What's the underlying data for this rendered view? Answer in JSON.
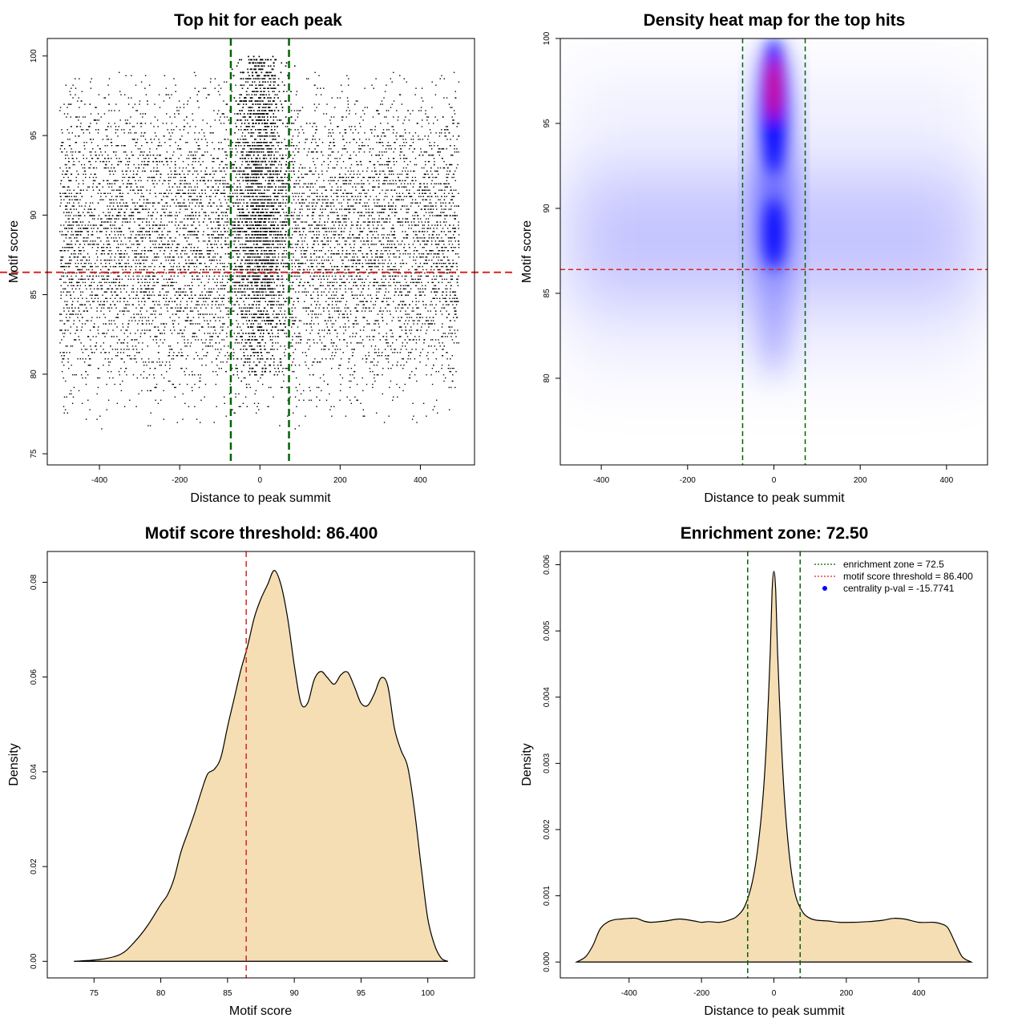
{
  "colors": {
    "enrichment_line": "#006400",
    "threshold_line": "#dd2222",
    "density_fill": "#f5deb3",
    "heat_low": "#ffffff",
    "heat_mid": "#0000ff",
    "heat_high": "#ff0000",
    "legend_pval": "#0000ff"
  },
  "chart_data": [
    {
      "type": "scatter",
      "title": "Top hit for each peak",
      "xlabel": "Distance to peak summit",
      "ylabel": "Motif score",
      "xlim": [
        -530,
        535
      ],
      "ylim": [
        74.3,
        101.1
      ],
      "xticks": [
        -400,
        -200,
        0,
        200,
        400
      ],
      "yticks": [
        75,
        80,
        85,
        90,
        95,
        100
      ],
      "x_range": [
        -500,
        495
      ],
      "enrichment_zone": [
        -72.5,
        72.5
      ],
      "motif_threshold": 86.4,
      "score_step": 0.2,
      "points_description": "Roughly uniform over distance within [-500, 495], dense concentration near 0 for scores 85–100"
    },
    {
      "type": "heatmap",
      "title": "Density heat map for the top hits",
      "xlabel": "Distance to peak summit",
      "ylabel": "Motif score",
      "xlim": [
        -495,
        495
      ],
      "ylim": [
        74.9,
        100.0
      ],
      "xticks": [
        -400,
        -200,
        0,
        200,
        400
      ],
      "yticks": [
        80,
        85,
        90,
        95,
        100
      ],
      "enrichment_zone": [
        -72.5,
        72.5
      ],
      "motif_threshold": 86.4,
      "hotspots": [
        {
          "x": 0,
          "y": 97,
          "intensity": "red"
        },
        {
          "x": 0,
          "y": 88.5,
          "intensity": "blue"
        }
      ]
    },
    {
      "type": "area",
      "title": "Motif score threshold: 86.400",
      "xlabel": "Motif score",
      "ylabel": "Density",
      "xlim": [
        71.5,
        103.5
      ],
      "ylim": [
        -0.0035,
        0.0865
      ],
      "xticks": [
        75,
        80,
        85,
        90,
        95,
        100
      ],
      "yticks": [
        0.0,
        0.02,
        0.04,
        0.06,
        0.08
      ],
      "ytick_labels": [
        "0.00",
        "0.02",
        "0.04",
        "0.06",
        "0.08"
      ],
      "threshold": 86.4,
      "x": [
        73.5,
        75.5,
        77,
        78,
        79,
        80,
        80.5,
        81,
        81.5,
        82,
        82.5,
        83,
        83.5,
        84,
        84.5,
        85,
        85.5,
        86,
        86.5,
        87,
        87.5,
        88,
        88.5,
        89,
        89.5,
        90,
        90.5,
        91,
        91.5,
        92,
        92.5,
        93,
        93.5,
        94,
        94.5,
        95,
        95.5,
        96,
        96.5,
        97,
        97.5,
        98,
        98.5,
        99,
        99.5,
        100,
        100.5,
        101,
        101.5
      ],
      "y": [
        0.0,
        0.0004,
        0.0015,
        0.004,
        0.0075,
        0.012,
        0.014,
        0.0175,
        0.023,
        0.027,
        0.031,
        0.0355,
        0.0395,
        0.0405,
        0.043,
        0.0495,
        0.0555,
        0.0615,
        0.0665,
        0.0725,
        0.0765,
        0.0795,
        0.0825,
        0.0795,
        0.0725,
        0.0625,
        0.0545,
        0.0545,
        0.0595,
        0.0612,
        0.0598,
        0.0585,
        0.0605,
        0.061,
        0.058,
        0.0545,
        0.054,
        0.0565,
        0.0598,
        0.0582,
        0.0492,
        0.0445,
        0.041,
        0.032,
        0.02,
        0.009,
        0.0035,
        0.0007,
        0.0
      ]
    },
    {
      "type": "area",
      "title": "Enrichment zone: 72.50",
      "xlabel": "Distance to peak summit",
      "ylabel": "Density",
      "xlim": [
        -590,
        590
      ],
      "ylim": [
        -0.00024,
        0.0062
      ],
      "xticks": [
        -400,
        -200,
        0,
        200,
        400
      ],
      "yticks": [
        0.0,
        0.001,
        0.002,
        0.003,
        0.004,
        0.005,
        0.006
      ],
      "ytick_labels": [
        "0.000",
        "0.001",
        "0.002",
        "0.003",
        "0.004",
        "0.005",
        "0.006"
      ],
      "enrichment_zone": [
        -72.5,
        72.5
      ],
      "x": [
        -545,
        -520,
        -500,
        -480,
        -460,
        -440,
        -420,
        -400,
        -380,
        -360,
        -340,
        -300,
        -260,
        -220,
        -200,
        -180,
        -150,
        -120,
        -100,
        -80,
        -60,
        -45,
        -30,
        -20,
        -10,
        -5,
        0,
        5,
        10,
        20,
        30,
        45,
        60,
        80,
        100,
        120,
        150,
        180,
        220,
        260,
        300,
        330,
        360,
        400,
        440,
        460,
        480,
        500,
        520,
        545
      ],
      "y": [
        0.0,
        8e-05,
        0.00025,
        0.0005,
        0.0006,
        0.00064,
        0.00065,
        0.00066,
        0.00066,
        0.00062,
        0.0006,
        0.00062,
        0.00065,
        0.00062,
        0.0006,
        0.00061,
        0.0006,
        0.00064,
        0.0007,
        0.00085,
        0.0012,
        0.0017,
        0.0025,
        0.0034,
        0.0047,
        0.0056,
        0.0059,
        0.0056,
        0.0047,
        0.0034,
        0.0024,
        0.0015,
        0.001,
        0.00075,
        0.00066,
        0.00063,
        0.00062,
        0.0006,
        0.0006,
        0.00061,
        0.00063,
        0.00066,
        0.00065,
        0.0006,
        0.0006,
        0.00058,
        0.00052,
        0.0003,
        8e-05,
        0.0
      ],
      "legend": [
        {
          "label": "enrichment zone = 72.5",
          "style": "dotted",
          "color": "#006400"
        },
        {
          "label": "motif score threshold = 86.400",
          "style": "dotted",
          "color": "#dd2222"
        },
        {
          "label": "centrality p-val = -15.7741",
          "style": "dot",
          "color": "#0000ff"
        }
      ],
      "legend_position": "top-right"
    }
  ]
}
